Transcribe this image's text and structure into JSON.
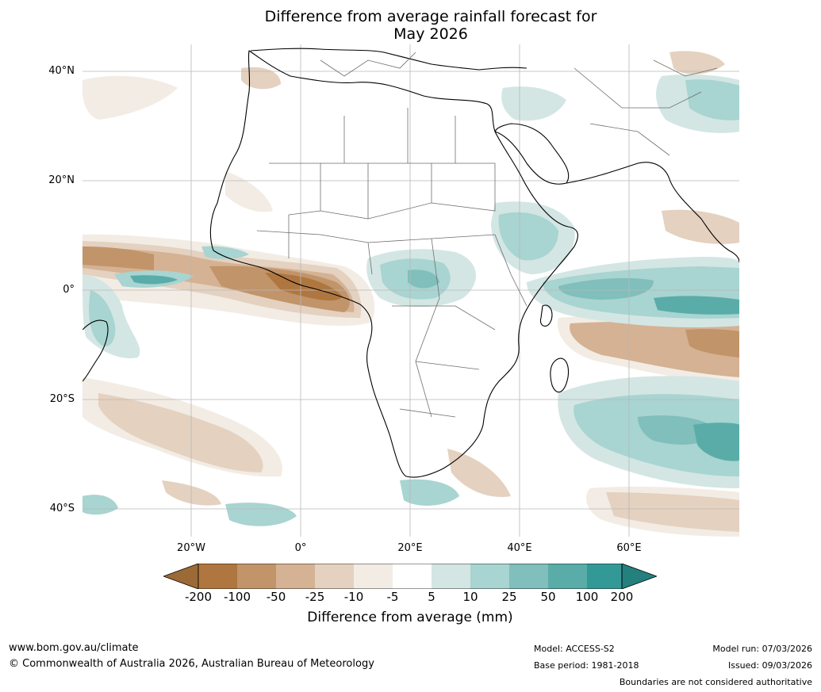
{
  "title_line1": "Difference from average rainfall forecast for",
  "title_line2": "May 2026",
  "axes": {
    "lat_ticks": [
      "40°N",
      "20°N",
      "0°",
      "20°S",
      "40°S"
    ],
    "lon_ticks": [
      "20°W",
      "0°",
      "20°E",
      "40°E",
      "60°E"
    ]
  },
  "colorbar": {
    "label": "Difference from average (mm)",
    "ticks": [
      "-200",
      "-100",
      "-50",
      "-25",
      "-10",
      "-5",
      "5",
      "10",
      "25",
      "50",
      "100",
      "200"
    ],
    "colors": [
      "#9c6a36",
      "#af773f",
      "#c1946a",
      "#d4b293",
      "#e4d1bf",
      "#f2ece4",
      "#ffffff",
      "#d3e6e3",
      "#a8d4d1",
      "#80bfbb",
      "#5aaca8",
      "#339997",
      "#23807d"
    ]
  },
  "footer": {
    "url": "www.bom.gov.au/climate",
    "copyright": "© Commonwealth of Australia 2026, Australian Bureau of Meteorology",
    "model": "Model: ACCESS-S2",
    "base_period": "Base period: 1981-2018",
    "model_run": "Model run: 07/03/2026",
    "issued": "Issued: 09/03/2026",
    "boundaries": "Boundaries are not considered authoritative"
  }
}
